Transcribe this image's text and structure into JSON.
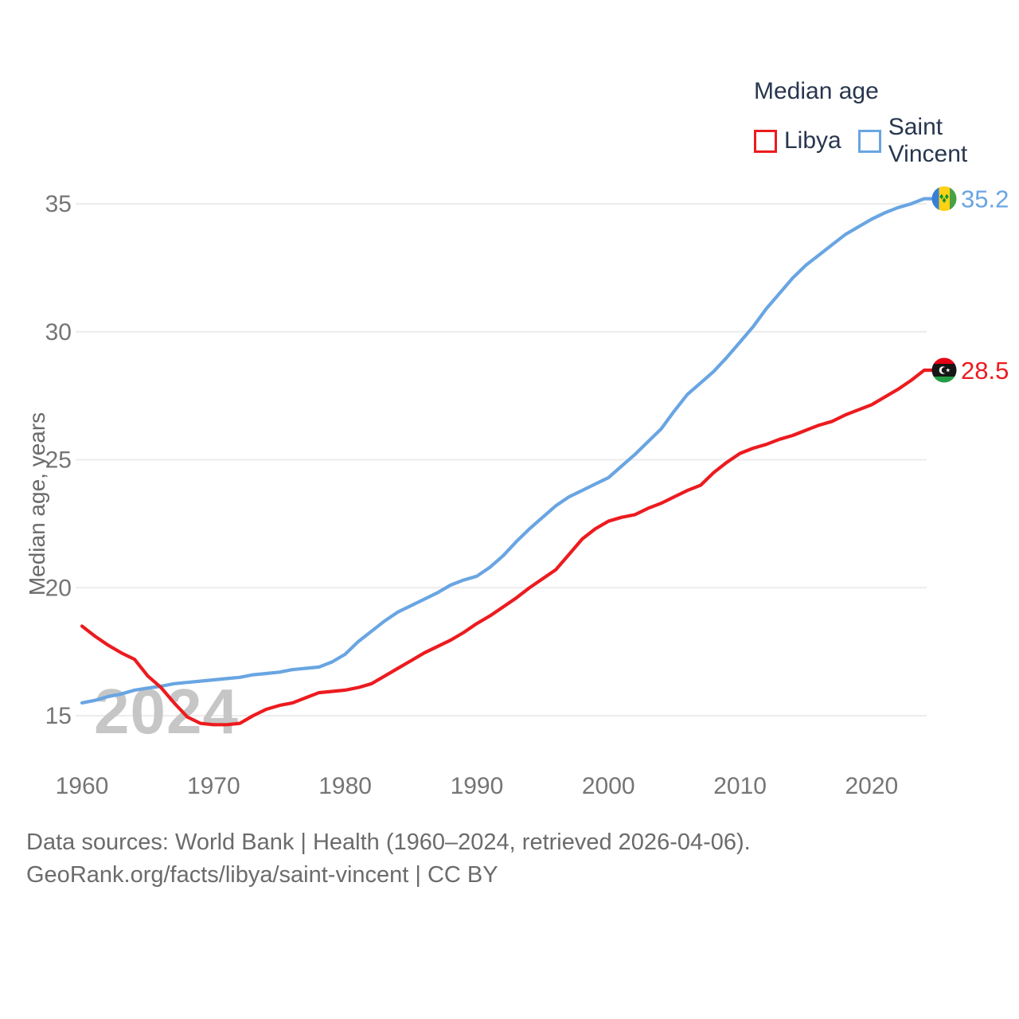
{
  "legend": {
    "title": "Median age",
    "items": [
      {
        "label": "Libya",
        "color": "#ec1b1f"
      },
      {
        "label": "Saint Vincent",
        "color": "#69a5e2"
      }
    ]
  },
  "chart_data": {
    "type": "line",
    "title": "Median age",
    "xlabel": "",
    "ylabel": "Median age, years",
    "watermark": "2024",
    "grid": "horizontal",
    "legend_position": "top-right",
    "xlim": [
      1960,
      2024
    ],
    "ylim": [
      13.8,
      36.6
    ],
    "x_ticks": [
      1960,
      1970,
      1980,
      1990,
      2000,
      2010,
      2020
    ],
    "y_ticks": [
      15,
      20,
      25,
      30,
      35
    ],
    "x": [
      1960,
      1961,
      1962,
      1963,
      1964,
      1965,
      1966,
      1967,
      1968,
      1969,
      1970,
      1971,
      1972,
      1973,
      1974,
      1975,
      1976,
      1977,
      1978,
      1979,
      1980,
      1981,
      1982,
      1983,
      1984,
      1985,
      1986,
      1987,
      1988,
      1989,
      1990,
      1991,
      1992,
      1993,
      1994,
      1995,
      1996,
      1997,
      1998,
      1999,
      2000,
      2001,
      2002,
      2003,
      2004,
      2005,
      2006,
      2007,
      2008,
      2009,
      2010,
      2011,
      2012,
      2013,
      2014,
      2015,
      2016,
      2017,
      2018,
      2019,
      2020,
      2021,
      2022,
      2023,
      2024
    ],
    "series": [
      {
        "name": "Libya",
        "color": "#ec1b1f",
        "flag": "libya",
        "end_label": "28.5",
        "values": [
          18.5,
          18.1,
          17.75,
          17.45,
          17.2,
          16.55,
          16.1,
          15.5,
          14.95,
          14.7,
          14.65,
          14.65,
          14.7,
          15.0,
          15.25,
          15.4,
          15.5,
          15.7,
          15.9,
          15.95,
          16.0,
          16.1,
          16.25,
          16.55,
          16.85,
          17.15,
          17.45,
          17.7,
          17.95,
          18.25,
          18.6,
          18.9,
          19.25,
          19.6,
          20.0,
          20.35,
          20.7,
          21.3,
          21.9,
          22.3,
          22.6,
          22.75,
          22.85,
          23.1,
          23.3,
          23.55,
          23.8,
          24.0,
          24.5,
          24.9,
          25.25,
          25.45,
          25.6,
          25.8,
          25.95,
          26.15,
          26.35,
          26.5,
          26.75,
          26.95,
          27.15,
          27.45,
          27.75,
          28.1,
          28.5
        ]
      },
      {
        "name": "Saint Vincent",
        "color": "#69a5e2",
        "flag": "saint-vincent",
        "end_label": "35.2",
        "values": [
          15.5,
          15.6,
          15.75,
          15.85,
          16.0,
          16.08,
          16.15,
          16.25,
          16.3,
          16.35,
          16.4,
          16.45,
          16.5,
          16.6,
          16.65,
          16.7,
          16.8,
          16.85,
          16.9,
          17.1,
          17.4,
          17.9,
          18.3,
          18.7,
          19.05,
          19.3,
          19.55,
          19.8,
          20.1,
          20.3,
          20.45,
          20.8,
          21.25,
          21.8,
          22.3,
          22.75,
          23.2,
          23.55,
          23.8,
          24.05,
          24.3,
          24.75,
          25.2,
          25.7,
          26.2,
          26.9,
          27.55,
          28.0,
          28.45,
          29.0,
          29.6,
          30.2,
          30.9,
          31.5,
          32.1,
          32.6,
          33.0,
          33.4,
          33.8,
          34.1,
          34.4,
          34.65,
          34.85,
          35.0,
          35.2
        ]
      }
    ]
  },
  "footer": {
    "line1": "Data sources: World Bank | Health (1960–2024, retrieved 2026-04-06).",
    "line2": "GeoRank.org/facts/libya/saint-vincent | CC BY"
  }
}
